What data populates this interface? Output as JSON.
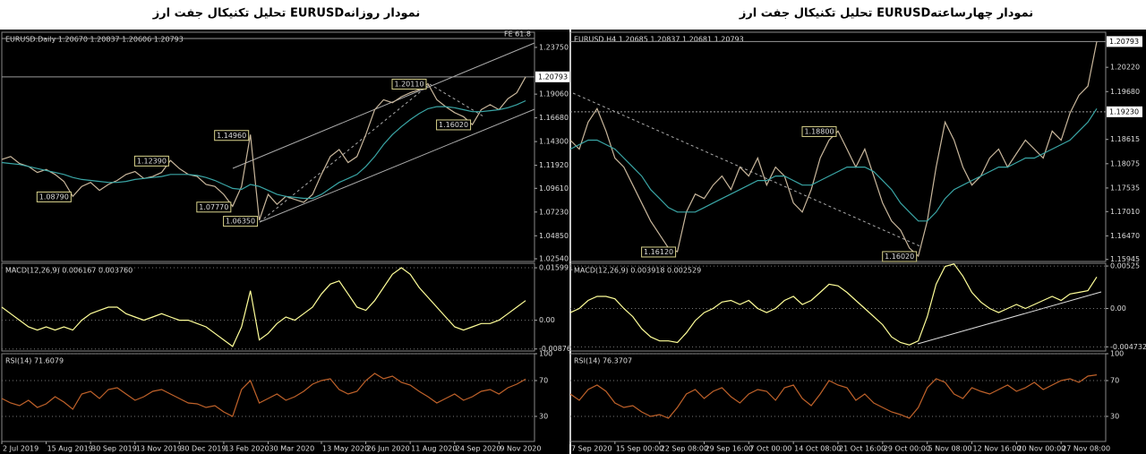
{
  "chart_data": [
    {
      "type": "line",
      "title": "تحلیل تکنیکال جفت ارز  EURUSDنمودار روزانه",
      "subtitle": "EURUSD.Daily  1.20670  1.20837  1.20606  1.20793",
      "xlim": [
        0,
        60
      ],
      "ylim": [
        1.0227,
        1.2527
      ],
      "yticks": [
        {
          "value": 1.2375,
          "label": "1.23750"
        },
        {
          "value": 1.1906,
          "label": "1.19060"
        },
        {
          "value": 1.1668,
          "label": "1.16680"
        },
        {
          "value": 1.143,
          "label": "1.14300"
        },
        {
          "value": 1.1192,
          "label": "1.11920"
        },
        {
          "value": 1.0961,
          "label": "1.09610"
        },
        {
          "value": 1.0723,
          "label": "1.07230"
        },
        {
          "value": 1.0485,
          "label": "1.04850"
        },
        {
          "value": 1.0254,
          "label": "1.02540"
        }
      ],
      "grid": false,
      "series": [
        {
          "color": "#c9b79c",
          "values": [
            1.125,
            1.128,
            1.121,
            1.118,
            1.112,
            1.115,
            1.11,
            1.103,
            1.088,
            1.098,
            1.102,
            1.094,
            1.1,
            1.104,
            1.11,
            1.113,
            1.106,
            1.108,
            1.112,
            1.124,
            1.116,
            1.11,
            1.108,
            1.1,
            1.098,
            1.09,
            1.078,
            1.098,
            1.15,
            1.064,
            1.09,
            1.08,
            1.088,
            1.085,
            1.082,
            1.09,
            1.11,
            1.128,
            1.135,
            1.122,
            1.128,
            1.15,
            1.175,
            1.185,
            1.182,
            1.188,
            1.192,
            1.195,
            1.201,
            1.185,
            1.178,
            1.172,
            1.168,
            1.16,
            1.175,
            1.18,
            1.175,
            1.186,
            1.192,
            1.208
          ]
        },
        {
          "color": "#3aa6a6",
          "values": [
            1.122,
            1.121,
            1.12,
            1.118,
            1.116,
            1.114,
            1.112,
            1.11,
            1.107,
            1.105,
            1.104,
            1.103,
            1.102,
            1.102,
            1.103,
            1.105,
            1.106,
            1.107,
            1.108,
            1.11,
            1.11,
            1.11,
            1.109,
            1.107,
            1.104,
            1.1,
            1.096,
            1.095,
            1.1,
            1.098,
            1.094,
            1.09,
            1.088,
            1.087,
            1.086,
            1.086,
            1.09,
            1.096,
            1.102,
            1.106,
            1.11,
            1.118,
            1.128,
            1.14,
            1.15,
            1.158,
            1.165,
            1.171,
            1.176,
            1.178,
            1.178,
            1.177,
            1.175,
            1.173,
            1.173,
            1.174,
            1.175,
            1.177,
            1.18,
            1.184
          ]
        }
      ],
      "hlines": [
        {
          "value": 1.20793,
          "label": "1.20793",
          "label_at": "axis"
        },
        {
          "value": 1.2464,
          "label": "FE 61.8",
          "label_at": "inside"
        }
      ],
      "annotations": [
        {
          "x": 28,
          "value": 1.1496,
          "label": "1.14960"
        },
        {
          "x": 19,
          "value": 1.1239,
          "label": "1.12390"
        },
        {
          "x": 8,
          "value": 1.0879,
          "label": "1.08790"
        },
        {
          "x": 26,
          "value": 1.0777,
          "label": "1.07770"
        },
        {
          "x": 29,
          "value": 1.0635,
          "label": "1.06350"
        },
        {
          "x": 48,
          "value": 1.2011,
          "label": "1.20110"
        },
        {
          "x": 53,
          "value": 1.1602,
          "label": "1.16020"
        }
      ]
    },
    {
      "type": "line",
      "title": "MACD(12,26,9)  0.006167  0.003760",
      "xlim": [
        0,
        60
      ],
      "ylim": [
        -0.00938,
        0.01737
      ],
      "yticks": [
        0.015991,
        {
          "value": 0,
          "label": "0.00"
        },
        -0.00876
      ],
      "grid": true,
      "series": [
        {
          "color": "#ffff99",
          "values": [
            0.004,
            0.002,
            0,
            -0.002,
            -0.003,
            -0.002,
            -0.003,
            -0.002,
            -0.003,
            0,
            0.002,
            0.003,
            0.004,
            0.004,
            0.002,
            0.001,
            0,
            0.001,
            0.002,
            0.001,
            0,
            0,
            -0.001,
            -0.002,
            -0.004,
            -0.006,
            -0.008,
            -0.002,
            0.009,
            -0.006,
            -0.004,
            -0.001,
            0.001,
            0,
            0.002,
            0.004,
            0.008,
            0.011,
            0.012,
            0.008,
            0.004,
            0.003,
            0.006,
            0.01,
            0.014,
            0.016,
            0.014,
            0.01,
            0.007,
            0.004,
            0.001,
            -0.002,
            -0.003,
            -0.002,
            -0.001,
            -0.001,
            0,
            0.002,
            0.004,
            0.006
          ]
        }
      ]
    },
    {
      "type": "line",
      "title": "RSI(14)  71.6079",
      "xlim": [
        0,
        60
      ],
      "ylim": [
        2,
        100
      ],
      "yticks": [
        100,
        70,
        30
      ],
      "grid": true,
      "xticks": [
        {
          "value": 0,
          "label": "2 Jul 2019"
        },
        {
          "value": 5,
          "label": "15 Aug 2019"
        },
        {
          "value": 10,
          "label": "30 Sep 2019"
        },
        {
          "value": 15,
          "label": "13 Nov 2019"
        },
        {
          "value": 20,
          "label": "30 Dec 2019"
        },
        {
          "value": 25,
          "label": "13 Feb 2020"
        },
        {
          "value": 30,
          "label": "30 Mar 2020"
        },
        {
          "value": 36,
          "label": "13 May 2020"
        },
        {
          "value": 41,
          "label": "26 Jun 2020"
        },
        {
          "value": 46,
          "label": "11 Aug 2020"
        },
        {
          "value": 51,
          "label": "24 Sep 2020"
        },
        {
          "value": 56,
          "label": "9 Nov 2020"
        }
      ],
      "series": [
        {
          "color": "#c0622a",
          "values": [
            50,
            45,
            42,
            48,
            40,
            44,
            52,
            46,
            38,
            55,
            58,
            50,
            60,
            62,
            55,
            48,
            52,
            58,
            60,
            55,
            50,
            45,
            44,
            40,
            42,
            35,
            30,
            60,
            70,
            45,
            50,
            55,
            48,
            52,
            58,
            66,
            70,
            72,
            60,
            55,
            58,
            70,
            78,
            72,
            75,
            68,
            65,
            58,
            52,
            45,
            50,
            55,
            48,
            52,
            58,
            60,
            55,
            62,
            66,
            71.6
          ]
        }
      ]
    },
    {
      "type": "line",
      "title": "تحلیل تکنیکال جفت ارز  EURUSDنمودار چهارساعته",
      "subtitle": "EURUSD.H4  1.20685  1.20837  1.20681  1.20793",
      "xlim": [
        0,
        60
      ],
      "ylim": [
        1.159,
        1.21
      ],
      "yticks": [
        {
          "value": 1.2022,
          "label": "1.20220"
        },
        {
          "value": 1.1968,
          "label": "1.19680"
        },
        {
          "value": 1.18615,
          "label": "1.18615"
        },
        {
          "value": 1.18075,
          "label": "1.18075"
        },
        {
          "value": 1.17535,
          "label": "1.17535"
        },
        {
          "value": 1.1701,
          "label": "1.17010"
        },
        {
          "value": 1.1647,
          "label": "1.16470"
        },
        {
          "value": 1.15945,
          "label": "1.15945"
        }
      ],
      "grid": false,
      "series": [
        {
          "color": "#c9b79c",
          "values": [
            1.186,
            1.184,
            1.19,
            1.193,
            1.188,
            1.182,
            1.18,
            1.176,
            1.172,
            1.168,
            1.165,
            1.162,
            1.1612,
            1.17,
            1.174,
            1.173,
            1.176,
            1.178,
            1.175,
            1.18,
            1.178,
            1.182,
            1.176,
            1.18,
            1.178,
            1.172,
            1.17,
            1.175,
            1.182,
            1.186,
            1.188,
            1.184,
            1.18,
            1.184,
            1.178,
            1.172,
            1.168,
            1.166,
            1.162,
            1.1602,
            1.168,
            1.18,
            1.19,
            1.186,
            1.18,
            1.176,
            1.178,
            1.182,
            1.184,
            1.18,
            1.183,
            1.186,
            1.184,
            1.182,
            1.188,
            1.186,
            1.192,
            1.196,
            1.198,
            1.2079
          ]
        },
        {
          "color": "#3aa6a6",
          "values": [
            1.184,
            1.185,
            1.186,
            1.186,
            1.185,
            1.184,
            1.182,
            1.18,
            1.178,
            1.175,
            1.173,
            1.171,
            1.17,
            1.17,
            1.17,
            1.171,
            1.172,
            1.173,
            1.174,
            1.175,
            1.176,
            1.177,
            1.177,
            1.178,
            1.178,
            1.177,
            1.176,
            1.176,
            1.177,
            1.178,
            1.179,
            1.18,
            1.18,
            1.18,
            1.179,
            1.177,
            1.175,
            1.172,
            1.17,
            1.168,
            1.168,
            1.17,
            1.173,
            1.175,
            1.176,
            1.177,
            1.178,
            1.179,
            1.18,
            1.18,
            1.181,
            1.182,
            1.182,
            1.183,
            1.184,
            1.185,
            1.186,
            1.188,
            1.19,
            1.193
          ]
        }
      ],
      "hlines": [
        {
          "value": 1.20793,
          "label": "1.20793",
          "label_at": "axis"
        },
        {
          "value": 1.1923,
          "label": "1.19230",
          "label_at": "axis"
        }
      ],
      "annotations": [
        {
          "x": 30,
          "value": 1.188,
          "label": "1.18800"
        },
        {
          "x": 12,
          "value": 1.1612,
          "label": "1.16120"
        },
        {
          "x": 39,
          "value": 1.1602,
          "label": "1.16020"
        }
      ]
    },
    {
      "type": "line",
      "title": "MACD(12,26,9)  0.003918  0.002529",
      "xlim": [
        0,
        60
      ],
      "ylim": [
        -0.00525,
        0.00559
      ],
      "yticks": [
        0.00525,
        {
          "value": 0,
          "label": "0.00"
        },
        -0.004732
      ],
      "grid": true,
      "series": [
        {
          "color": "#ffff99",
          "values": [
            -0.0005,
            0,
            0.001,
            0.0015,
            0.0015,
            0.0012,
            0,
            -0.001,
            -0.0025,
            -0.0035,
            -0.004,
            -0.004,
            -0.0042,
            -0.003,
            -0.0015,
            -0.0005,
            0,
            0.0008,
            0.001,
            0.0005,
            0.001,
            0,
            -0.0005,
            0,
            0.001,
            0.0015,
            0.0005,
            0.001,
            0.002,
            0.003,
            0.0028,
            0.002,
            0.001,
            0,
            -0.001,
            -0.002,
            -0.0035,
            -0.0042,
            -0.0045,
            -0.004,
            -0.001,
            0.003,
            0.0052,
            0.0055,
            0.004,
            0.002,
            0.0008,
            0,
            -0.0005,
            0,
            0.0005,
            0,
            0.0005,
            0.001,
            0.0015,
            0.001,
            0.0018,
            0.002,
            0.0022,
            0.0039
          ]
        }
      ]
    },
    {
      "type": "line",
      "title": "RSI(14)  76.3707",
      "xlim": [
        0,
        60
      ],
      "ylim": [
        2,
        100
      ],
      "yticks": [
        100,
        70,
        30
      ],
      "grid": true,
      "xticks": [
        {
          "value": 0,
          "label": "7 Sep 2020"
        },
        {
          "value": 5,
          "label": "15 Sep 00:00"
        },
        {
          "value": 10,
          "label": "22 Sep 08:00"
        },
        {
          "value": 15,
          "label": "29 Sep 16:00"
        },
        {
          "value": 20,
          "label": "7 Oct 00:00"
        },
        {
          "value": 25,
          "label": "14 Oct 08:00"
        },
        {
          "value": 30,
          "label": "21 Oct 16:00"
        },
        {
          "value": 35,
          "label": "29 Oct 00:00"
        },
        {
          "value": 40,
          "label": "5 Nov 08:00"
        },
        {
          "value": 45,
          "label": "12 Nov 16:00"
        },
        {
          "value": 50,
          "label": "20 Nov 00:00"
        },
        {
          "value": 55,
          "label": "27 Nov 08:00"
        }
      ],
      "series": [
        {
          "color": "#c0622a",
          "values": [
            55,
            48,
            60,
            65,
            58,
            45,
            40,
            42,
            35,
            30,
            32,
            28,
            40,
            55,
            60,
            50,
            58,
            62,
            52,
            45,
            55,
            60,
            58,
            48,
            62,
            65,
            50,
            42,
            55,
            70,
            65,
            62,
            48,
            55,
            45,
            40,
            35,
            32,
            28,
            40,
            62,
            72,
            68,
            55,
            50,
            62,
            58,
            55,
            60,
            65,
            58,
            62,
            68,
            60,
            65,
            70,
            72,
            68,
            75,
            76.4
          ]
        }
      ]
    }
  ]
}
